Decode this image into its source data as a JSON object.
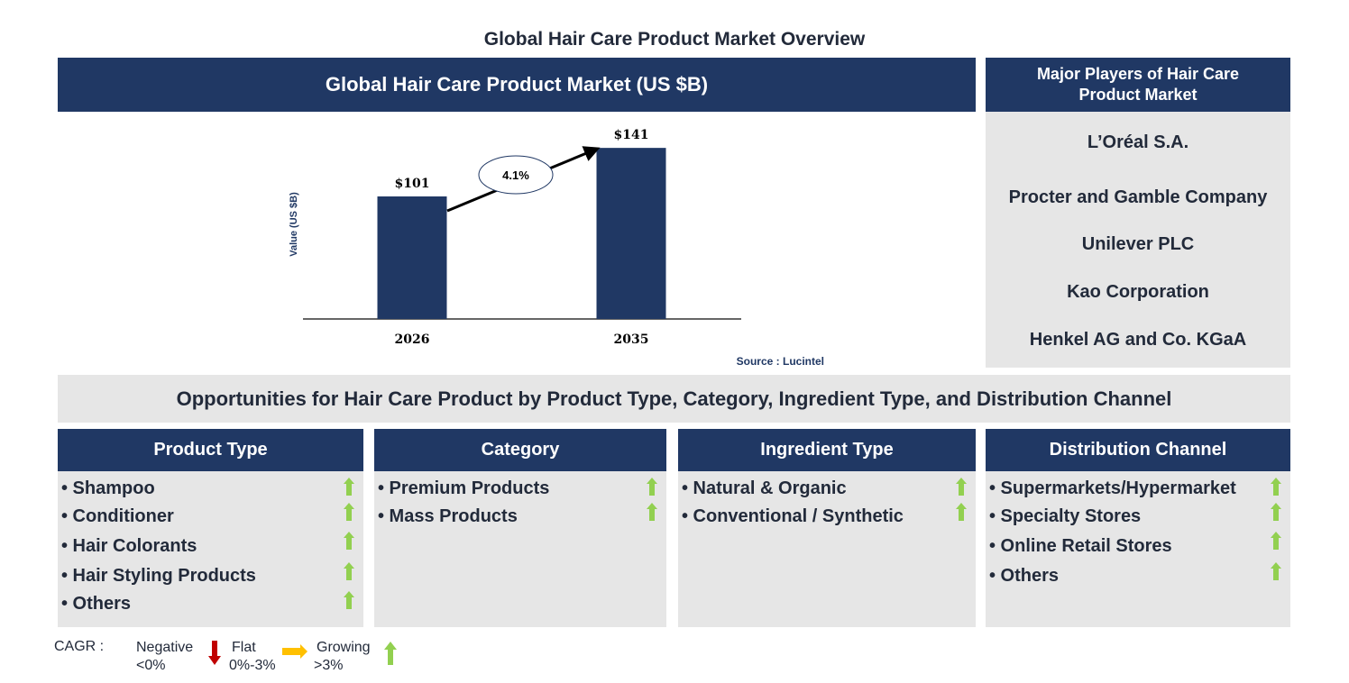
{
  "title": "Global Hair Care Product Market Overview",
  "chart_header": "Global Hair Care Product Market (US $B)",
  "chart_data": {
    "type": "bar",
    "title": "Global Hair Care Product Market (US $B)",
    "ylabel": "Value (US $B)",
    "categories": [
      "2026",
      "2035"
    ],
    "values": [
      101,
      141
    ],
    "data_labels": [
      "$101",
      "$141"
    ],
    "annotation": "4.1%",
    "bar_color": "#203864",
    "grid": false,
    "source": "Source : Lucintel"
  },
  "players": {
    "header": "Major Players of Hair Care Product Market",
    "items": [
      "L’Oréal S.A.",
      "Procter and Gamble Company",
      "Unilever PLC",
      "Kao Corporation",
      "Henkel AG and Co. KGaA"
    ]
  },
  "opportunities_title": "Opportunities for Hair Care Product by Product Type, Category, Ingredient Type, and Distribution Channel",
  "columns": [
    {
      "header": "Product Type",
      "items": [
        "• Shampoo",
        "• Conditioner",
        "• Hair Colorants",
        "• Hair Styling Products",
        "• Others"
      ],
      "trend": "growing-arrow-icon"
    },
    {
      "header": "Category",
      "items": [
        "• Premium Products",
        "• Mass Products"
      ],
      "trend": "growing-arrow-icon"
    },
    {
      "header": "Ingredient Type",
      "items": [
        "• Natural & Organic",
        "• Conventional / Synthetic"
      ],
      "trend": "growing-arrow-icon"
    },
    {
      "header": "Distribution Channel",
      "items": [
        "• Supermarkets/Hypermarket",
        "• Specialty Stores",
        "• Online Retail Stores",
        "• Others"
      ],
      "trend": "growing-arrow-icon"
    }
  ],
  "legend": {
    "label": "CAGR :",
    "negative": [
      "Negative",
      "<0%"
    ],
    "flat": [
      "Flat",
      "0%-3%"
    ],
    "growing": [
      "Growing",
      ">3%"
    ],
    "colors": {
      "negative": "#c00000",
      "flat": "#ffc000",
      "growing": "#92d050"
    }
  }
}
